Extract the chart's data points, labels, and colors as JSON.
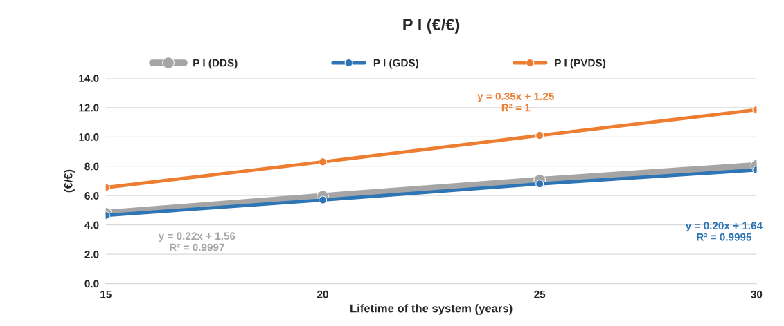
{
  "chart_data": {
    "type": "line",
    "title": "P I (€/€)",
    "xlabel": "Lifetime of the system (years)",
    "ylabel": "(€/€)",
    "x": [
      15,
      20,
      25,
      30
    ],
    "series": [
      {
        "name": "P I (DDS)",
        "color": "#a5a5a5",
        "values": [
          4.8,
          5.95,
          7.05,
          8.05
        ]
      },
      {
        "name": "P I (GDS)",
        "color": "#2e75b6",
        "values": [
          4.65,
          5.7,
          6.8,
          7.75
        ]
      },
      {
        "name": "P I (PVDS)",
        "color": "#ed7d31",
        "values": [
          6.55,
          8.3,
          10.1,
          11.85
        ]
      }
    ],
    "annotations": [
      "y = 0.22x + 1.56\nR² = 0.9997",
      "y = 0.20x + 1.64\nR² = 0.9995",
      "y = 0.35x + 1.25\nR² = 1"
    ],
    "xlim": [
      15,
      30
    ],
    "xticks": [
      15,
      20,
      25,
      30
    ],
    "ylim": [
      0,
      14
    ],
    "yticks": [
      {
        "value": 0,
        "label": "0.0"
      },
      {
        "value": 2,
        "label": "2.0"
      },
      {
        "value": 4,
        "label": "4.0"
      },
      {
        "value": 6,
        "label": "6.0"
      },
      {
        "value": 8,
        "label": "8.0"
      },
      {
        "value": 10,
        "label": "10.0"
      },
      {
        "value": 12,
        "label": "12.0"
      },
      {
        "value": 14,
        "label": "14.0"
      }
    ],
    "grid": "y",
    "legend": "top",
    "marker": "circle",
    "line_style": "solid"
  }
}
